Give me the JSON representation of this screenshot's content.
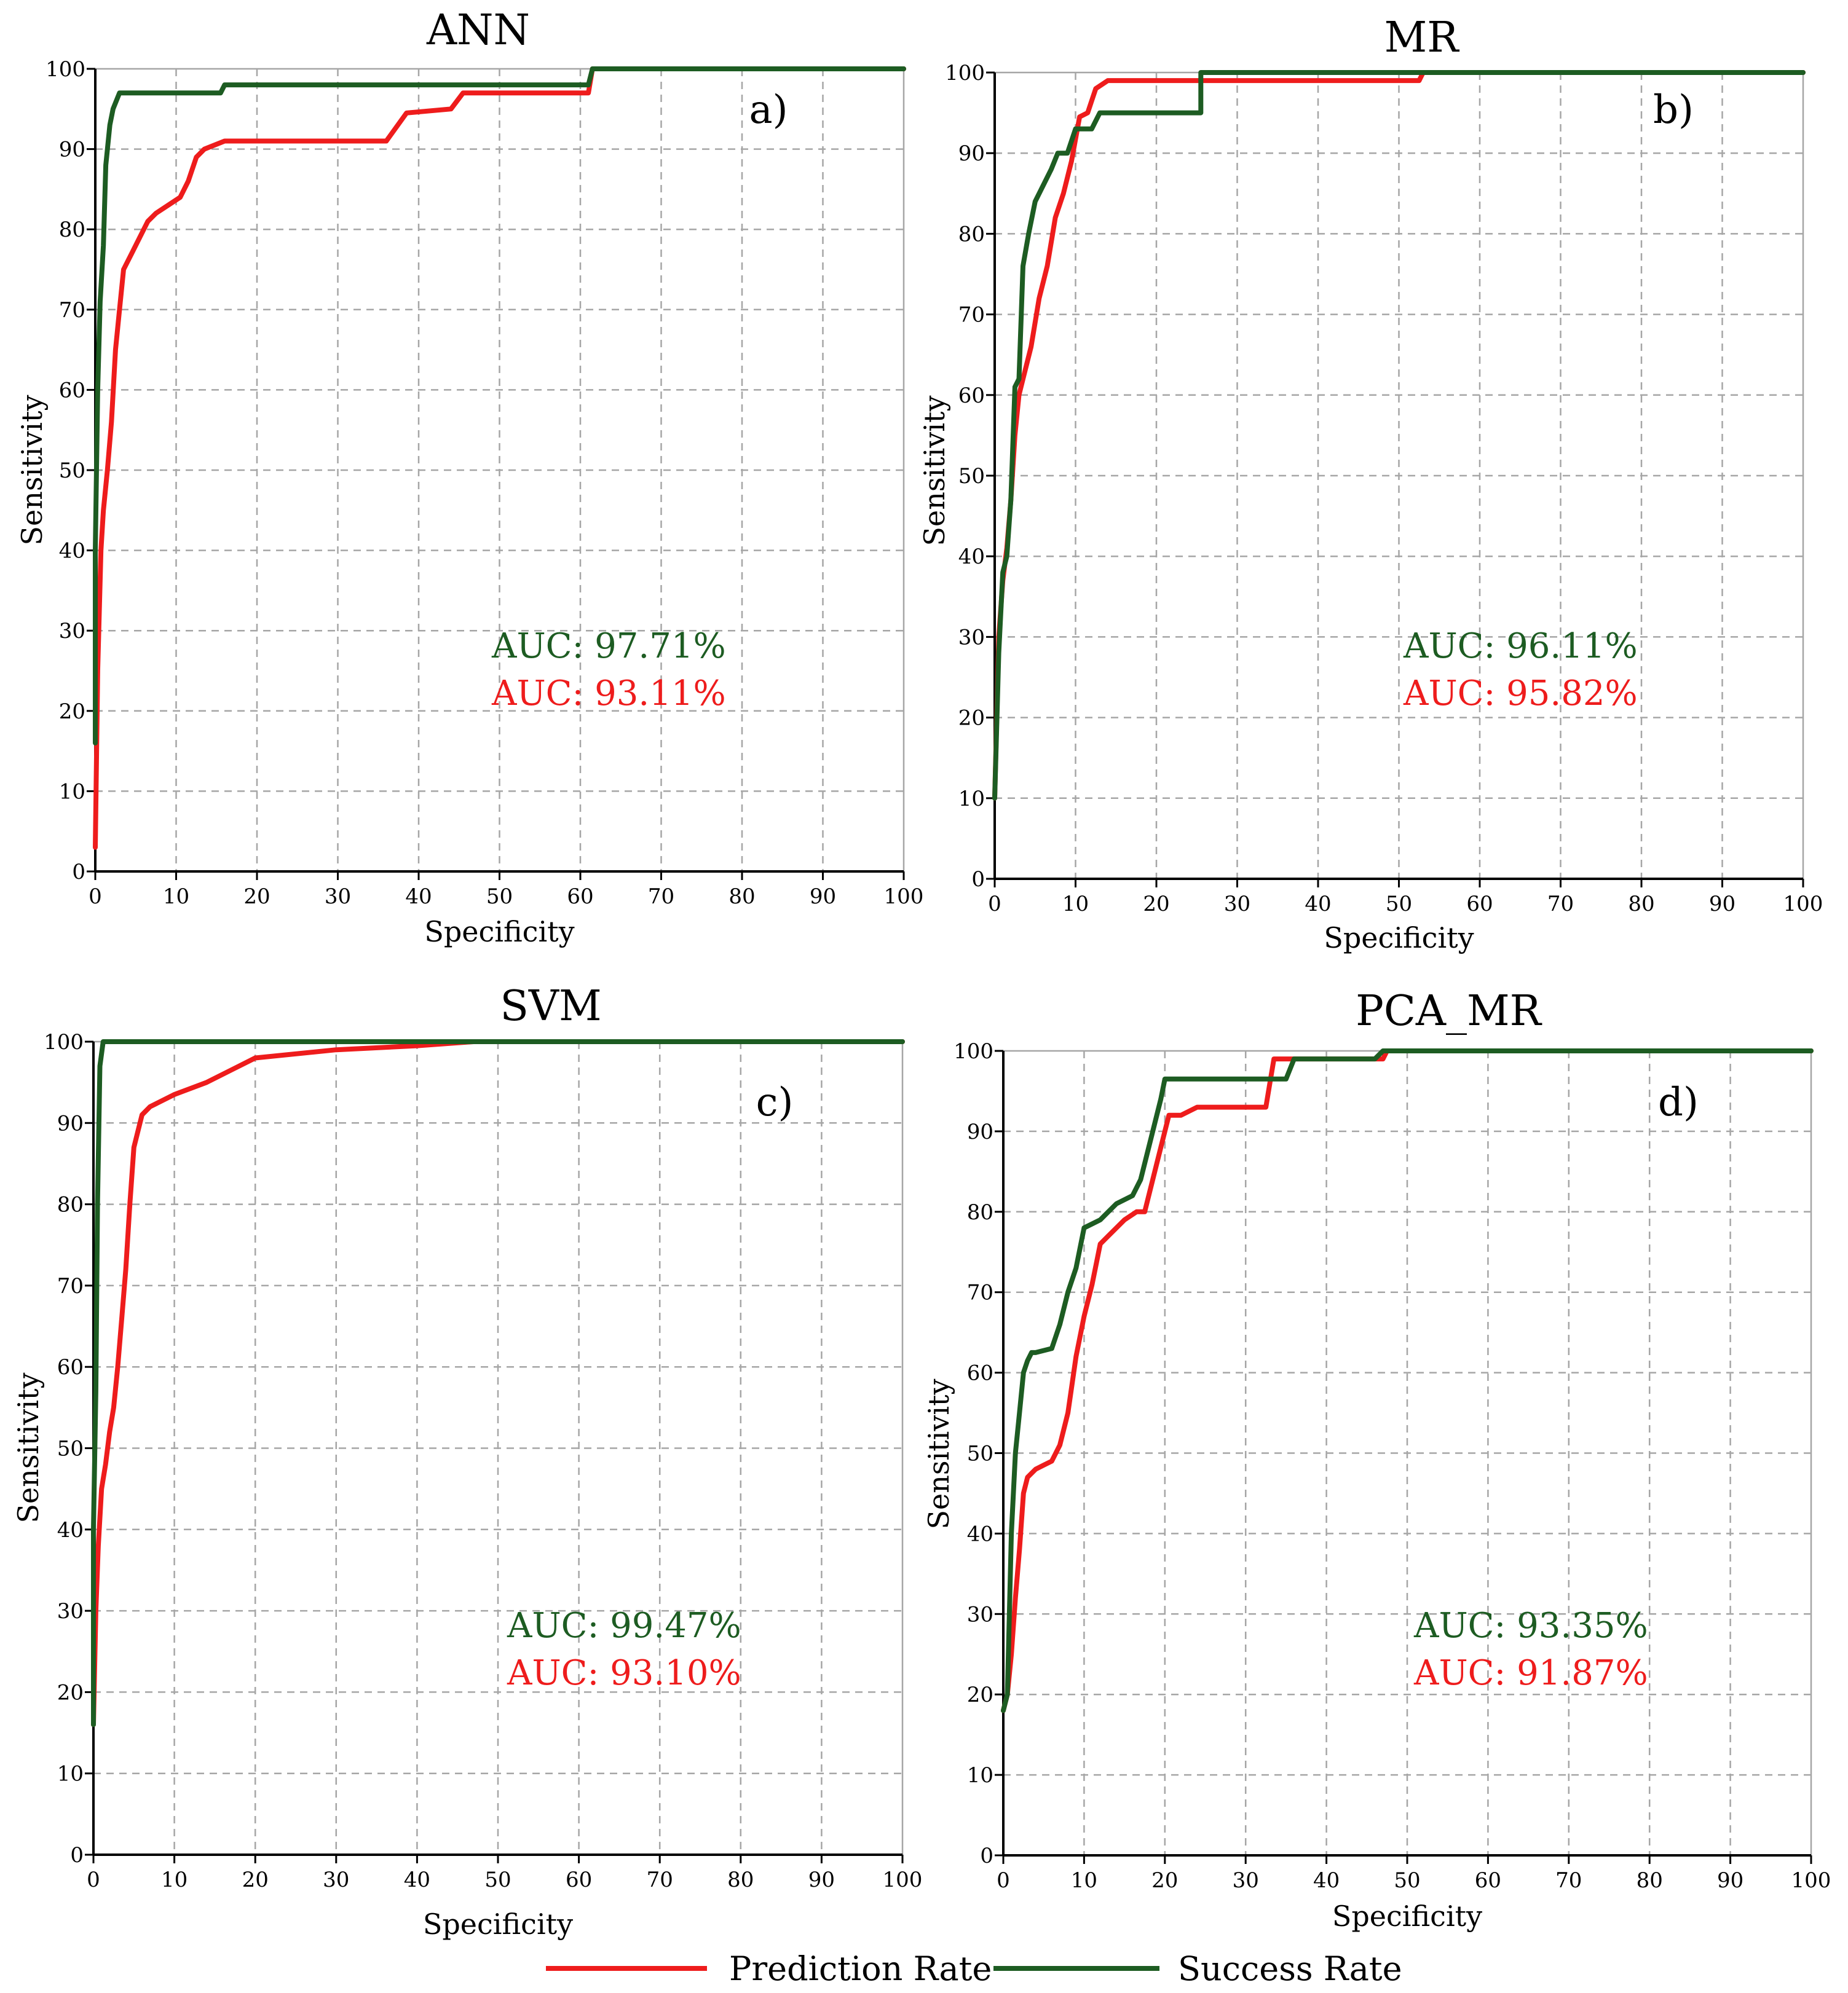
{
  "colors": {
    "success": "#1d5c22",
    "prediction": "#ee1c1c"
  },
  "legend": {
    "prediction_label": "Prediction Rate",
    "success_label": "Success Rate"
  },
  "chart_data": [
    {
      "type": "line",
      "title": "ANN",
      "panel_label": "a)",
      "xlabel": "Specificity",
      "ylabel": "Sensitivity",
      "xlim": [
        0,
        100
      ],
      "ylim": [
        0,
        100
      ],
      "xticks": [
        0,
        10,
        20,
        30,
        40,
        50,
        60,
        70,
        80,
        90,
        100
      ],
      "yticks": [
        0,
        10,
        20,
        30,
        40,
        50,
        60,
        70,
        80,
        90,
        100
      ],
      "auc_success": "AUC: 97.71%",
      "auc_prediction": "AUC: 93.11%",
      "series": [
        {
          "name": "Success Rate",
          "color_key": "success",
          "x": [
            0,
            0,
            0.3,
            0.6,
            1,
            1.3,
            1.8,
            2.2,
            3,
            15.5,
            16,
            61,
            61.5,
            100
          ],
          "y": [
            16,
            40,
            60,
            71,
            78,
            88,
            93,
            95,
            97,
            97,
            98,
            98,
            100,
            100
          ]
        },
        {
          "name": "Prediction Rate",
          "color_key": "prediction",
          "x": [
            0,
            0.3,
            0.7,
            1.0,
            1.5,
            2.0,
            2.5,
            3.0,
            3.5,
            4.5,
            5.5,
            6.5,
            7.5,
            9.0,
            10.5,
            11.5,
            12.5,
            13.5,
            16,
            20,
            36,
            38.5,
            44,
            45.5,
            61,
            61.5,
            100
          ],
          "y": [
            3,
            25,
            40,
            45,
            50,
            56,
            65,
            70,
            75,
            77,
            79,
            81,
            82,
            83,
            84,
            86,
            89,
            90,
            91,
            91,
            91,
            94.5,
            95,
            97,
            97,
            100,
            100
          ]
        }
      ]
    },
    {
      "type": "line",
      "title": "MR",
      "panel_label": "b)",
      "xlabel": "Specificity",
      "ylabel": "Sensitivity",
      "xlim": [
        0,
        100
      ],
      "ylim": [
        0,
        100
      ],
      "xticks": [
        0,
        10,
        20,
        30,
        40,
        50,
        60,
        70,
        80,
        90,
        100
      ],
      "yticks": [
        0,
        10,
        20,
        30,
        40,
        50,
        60,
        70,
        80,
        90,
        100
      ],
      "auc_success": "AUC: 96.11%",
      "auc_prediction": "AUC: 95.82%",
      "series": [
        {
          "name": "Success Rate",
          "color_key": "success",
          "x": [
            0,
            0.5,
            1.0,
            1.5,
            2.0,
            2.5,
            3.0,
            3.5,
            4.2,
            5.0,
            6.0,
            7.0,
            7.8,
            9.0,
            10.0,
            12.0,
            13.0,
            25.5,
            25.5,
            100
          ],
          "y": [
            10,
            28,
            38,
            40,
            47,
            61,
            62,
            76,
            80,
            84,
            86,
            88,
            90,
            90,
            93,
            93,
            95,
            95,
            100,
            100
          ]
        },
        {
          "name": "Prediction Rate",
          "color_key": "prediction",
          "x": [
            0,
            0.5,
            1.0,
            1.5,
            2.0,
            2.5,
            3.0,
            3.5,
            4.5,
            5.5,
            6.5,
            7.5,
            8.5,
            9.5,
            10.5,
            11.5,
            12.5,
            14,
            16,
            52.5,
            53,
            100
          ],
          "y": [
            10,
            30,
            37,
            41,
            47,
            55,
            60,
            62,
            66,
            72,
            76,
            82,
            85,
            89,
            94.5,
            95,
            98,
            99,
            99,
            99,
            100,
            100
          ]
        }
      ]
    },
    {
      "type": "line",
      "title": "SVM",
      "panel_label": "c)",
      "xlabel": "Specificity",
      "ylabel": "Sensitivity",
      "xlim": [
        0,
        100
      ],
      "ylim": [
        0,
        100
      ],
      "xticks": [
        0,
        10,
        20,
        30,
        40,
        50,
        60,
        70,
        80,
        90,
        100
      ],
      "yticks": [
        0,
        10,
        20,
        30,
        40,
        50,
        60,
        70,
        80,
        90,
        100
      ],
      "auc_success": "AUC: 99.47%",
      "auc_prediction": "AUC: 93.10%",
      "series": [
        {
          "name": "Success Rate",
          "color_key": "success",
          "x": [
            0,
            0,
            0.3,
            0.5,
            0.8,
            1.2,
            100
          ],
          "y": [
            16,
            40,
            57,
            80,
            97,
            100,
            100
          ]
        },
        {
          "name": "Prediction Rate",
          "color_key": "prediction",
          "x": [
            0,
            0.3,
            0.6,
            1.0,
            1.5,
            2.0,
            2.5,
            3.0,
            3.5,
            4.0,
            4.5,
            5.0,
            5.5,
            6.0,
            7.0,
            8.0,
            10.0,
            14.0,
            20.0,
            30.0,
            40.0,
            47.0,
            100
          ],
          "y": [
            16,
            30,
            38,
            45,
            48,
            52,
            55,
            60,
            66,
            72,
            80,
            87,
            89,
            91,
            92,
            92.5,
            93.5,
            95,
            98,
            99,
            99.5,
            100,
            100
          ]
        }
      ]
    },
    {
      "type": "line",
      "title": "PCA_MR",
      "panel_label": "d)",
      "xlabel": "Specificity",
      "ylabel": "Sensitivity",
      "xlim": [
        0,
        100
      ],
      "ylim": [
        0,
        100
      ],
      "xticks": [
        0,
        10,
        20,
        30,
        40,
        50,
        60,
        70,
        80,
        90,
        100
      ],
      "yticks": [
        0,
        10,
        20,
        30,
        40,
        50,
        60,
        70,
        80,
        90,
        100
      ],
      "auc_success": "AUC: 93.35%",
      "auc_prediction": "AUC: 91.87%",
      "series": [
        {
          "name": "Success Rate",
          "color_key": "success",
          "x": [
            0,
            0.5,
            1.0,
            1.5,
            2.0,
            2.5,
            3.0,
            3.5,
            4.0,
            6.0,
            7.0,
            8.0,
            9.0,
            10.0,
            12.0,
            13.0,
            14.0,
            16.0,
            17.0,
            18.5,
            19.5,
            20.0,
            25.0,
            35.0,
            36.0,
            46.0,
            47.0,
            100
          ],
          "y": [
            18,
            20,
            40,
            50,
            55,
            60,
            61.5,
            62.5,
            62.5,
            63,
            66,
            70,
            73,
            78,
            79,
            80,
            81,
            82,
            84,
            90,
            94,
            96.5,
            96.5,
            96.5,
            99,
            99,
            100,
            100
          ]
        },
        {
          "name": "Prediction Rate",
          "color_key": "prediction",
          "x": [
            0,
            0.5,
            1.0,
            1.5,
            2.0,
            2.5,
            3.0,
            4.0,
            5.0,
            6.0,
            7.0,
            8.0,
            9.0,
            10.0,
            11.0,
            12.0,
            13.0,
            15.0,
            16.5,
            17.5,
            18.5,
            19.5,
            20.5,
            22.0,
            24.0,
            28.0,
            32.5,
            33.0,
            33.5,
            47.0,
            47.5,
            100
          ],
          "y": [
            18,
            20,
            25,
            32,
            38,
            45,
            47,
            48,
            48.5,
            49,
            51,
            55,
            62,
            67,
            71,
            76,
            77,
            79,
            80,
            80,
            84,
            88,
            92,
            92,
            93,
            93,
            93,
            96,
            99,
            99,
            100,
            100
          ]
        }
      ]
    }
  ]
}
